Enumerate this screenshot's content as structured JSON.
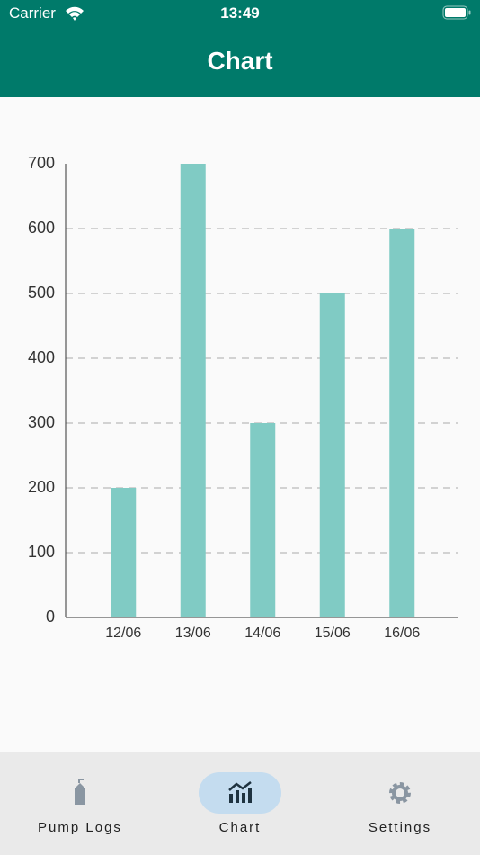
{
  "status_bar": {
    "carrier": "Carrier",
    "time": "13:49"
  },
  "app_bar": {
    "title": "Chart"
  },
  "chart_data": {
    "type": "bar",
    "categories": [
      "12/06",
      "13/06",
      "14/06",
      "15/06",
      "16/06"
    ],
    "values": [
      200,
      700,
      300,
      500,
      600
    ],
    "color": "#80cbc4",
    "ylim": [
      0,
      700
    ],
    "yticks": [
      0,
      100,
      200,
      300,
      400,
      500,
      600,
      700
    ],
    "grid": true
  },
  "nav": {
    "items": [
      {
        "label": "Pump Logs"
      },
      {
        "label": "Chart"
      },
      {
        "label": "Settings"
      }
    ],
    "selected": 1
  }
}
